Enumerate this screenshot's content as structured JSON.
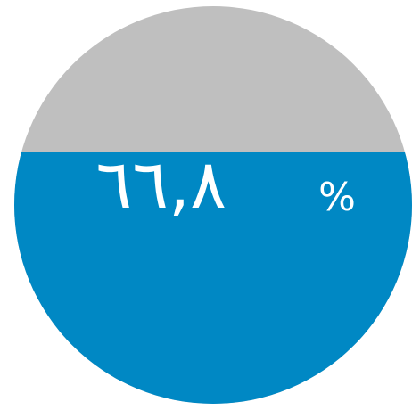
{
  "chart_data": {
    "type": "pie",
    "style": "liquid-fill gauge",
    "value_percent": 66.8,
    "value_label": "٦٦,٨",
    "unit_label": "%",
    "colors": {
      "fill": "#0088C4",
      "empty": "#BFBFBF",
      "label": "#FFFFFF"
    }
  }
}
